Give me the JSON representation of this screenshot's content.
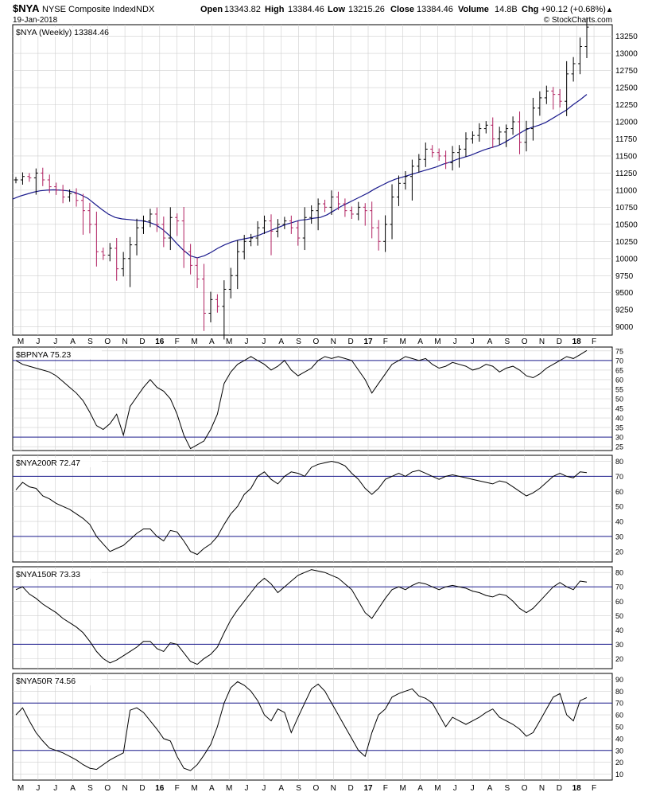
{
  "header": {
    "symbol": "$NYA",
    "name": "NYSE Composite Index",
    "exchange": "INDX",
    "date": "19-Jan-2018",
    "open_label": "Open",
    "open": "13343.82",
    "high_label": "High",
    "high": "13384.46",
    "low_label": "Low",
    "low": "13215.26",
    "close_label": "Close",
    "close": "13384.46",
    "volume_label": "Volume",
    "volume": "14.8B",
    "chg_label": "Chg",
    "chg": "+90.12 (+0.68%)",
    "brand": "© StockCharts.com"
  },
  "colors": {
    "price_up": "#000000",
    "price_down": "#b02060",
    "ma": "#1a1a8c",
    "grid": "#cfcfcf",
    "ref_line": "#1a1a8c"
  },
  "x_axis": {
    "labels": [
      "M",
      "J",
      "J",
      "A",
      "S",
      "O",
      "N",
      "D",
      "16",
      "F",
      "M",
      "A",
      "M",
      "J",
      "J",
      "A",
      "S",
      "O",
      "N",
      "D",
      "17",
      "F",
      "M",
      "A",
      "M",
      "J",
      "J",
      "A",
      "S",
      "O",
      "N",
      "D",
      "18",
      "F"
    ],
    "bold": [
      "16",
      "17",
      "18"
    ]
  },
  "chart_data": [
    {
      "type": "ohlc",
      "title": "$NYA (Weekly) 13384.46",
      "y_ticks": [
        9000,
        9250,
        9500,
        9750,
        10000,
        10250,
        10500,
        10750,
        11000,
        11250,
        11500,
        11750,
        12000,
        12250,
        12500,
        12750,
        13000,
        13250
      ],
      "ylim": [
        8880,
        13420
      ],
      "ma_series": {
        "name": "",
        "values": [
          10870,
          10910,
          10940,
          10970,
          10990,
          11000,
          11005,
          11000,
          10990,
          10970,
          10930,
          10880,
          10800,
          10720,
          10650,
          10600,
          10580,
          10570,
          10560,
          10550,
          10530,
          10490,
          10420,
          10330,
          10220,
          10120,
          10040,
          10010,
          10040,
          10090,
          10150,
          10200,
          10240,
          10270,
          10290,
          10310,
          10340,
          10380,
          10420,
          10460,
          10500,
          10530,
          10560,
          10570,
          10590,
          10600,
          10640,
          10700,
          10760,
          10810,
          10860,
          10910,
          10960,
          11020,
          11070,
          11120,
          11160,
          11190,
          11220,
          11250,
          11280,
          11310,
          11340,
          11380,
          11410,
          11450,
          11480,
          11510,
          11550,
          11590,
          11620,
          11650,
          11700,
          11760,
          11820,
          11880,
          11920,
          11950,
          11990,
          12050,
          12110,
          12170,
          12250,
          12320,
          12400
        ]
      },
      "closes": [
        11150,
        11200,
        11180,
        11250,
        11150,
        11050,
        11000,
        10900,
        10950,
        10850,
        10700,
        10500,
        10100,
        10050,
        10150,
        9850,
        10000,
        10200,
        10450,
        10550,
        10650,
        10500,
        10300,
        10600,
        10550,
        10100,
        9900,
        9700,
        9200,
        9400,
        9300,
        9550,
        9750,
        10100,
        10250,
        10300,
        10450,
        10550,
        10400,
        10500,
        10550,
        10450,
        10300,
        10600,
        10700,
        10800,
        10750,
        10900,
        10800,
        10700,
        10650,
        10750,
        10700,
        10450,
        10250,
        10500,
        10900,
        11100,
        11200,
        11350,
        11450,
        11600,
        11550,
        11500,
        11400,
        11550,
        11600,
        11750,
        11800,
        11900,
        11950,
        11750,
        11850,
        11900,
        12000,
        11700,
        11900,
        12200,
        12350,
        12450,
        12400,
        12300,
        12700,
        12850,
        13100,
        13384
      ]
    },
    {
      "type": "line",
      "title": "$BPNYA 75.23",
      "y_ticks": [
        25,
        30,
        35,
        40,
        45,
        50,
        55,
        60,
        65,
        70,
        75
      ],
      "ylim": [
        23,
        77
      ],
      "ref_lines": [
        70,
        30
      ],
      "values": [
        70,
        68,
        67,
        66,
        65,
        64,
        62,
        59,
        56,
        53,
        49,
        43,
        36,
        34,
        37,
        42,
        31,
        46,
        51,
        56,
        60,
        56,
        54,
        50,
        42,
        31,
        24,
        26,
        28,
        34,
        42,
        58,
        64,
        68,
        70,
        72,
        70,
        68,
        65,
        67,
        70,
        65,
        62,
        64,
        66,
        70,
        72,
        71,
        72,
        71,
        70,
        65,
        60,
        53,
        58,
        63,
        68,
        70,
        72,
        71,
        70,
        71,
        68,
        66,
        67,
        69,
        68,
        67,
        65,
        66,
        68,
        67,
        64,
        66,
        67,
        65,
        62,
        61,
        63,
        66,
        68,
        70,
        72,
        71,
        73,
        75.23
      ]
    },
    {
      "type": "line",
      "title": "$NYA200R 72.47",
      "y_ticks": [
        20,
        30,
        40,
        50,
        60,
        70,
        80
      ],
      "ylim": [
        13,
        84
      ],
      "ref_lines": [
        70,
        30
      ],
      "values": [
        61,
        66,
        63,
        62,
        57,
        55,
        52,
        50,
        48,
        45,
        42,
        38,
        30,
        25,
        20,
        22,
        24,
        28,
        32,
        35,
        35,
        30,
        27,
        34,
        33,
        27,
        20,
        18,
        22,
        25,
        30,
        38,
        45,
        50,
        58,
        62,
        70,
        73,
        68,
        65,
        70,
        73,
        72,
        70,
        76,
        78,
        79,
        80,
        79,
        77,
        72,
        68,
        62,
        58,
        62,
        68,
        70,
        72,
        70,
        73,
        74,
        72,
        70,
        68,
        70,
        71,
        70,
        69,
        68,
        67,
        66,
        65,
        67,
        66,
        63,
        60,
        57,
        59,
        62,
        66,
        70,
        72,
        70,
        69,
        73,
        72.47
      ]
    },
    {
      "type": "line",
      "title": "$NYA150R 73.33",
      "y_ticks": [
        20,
        30,
        40,
        50,
        60,
        70,
        80
      ],
      "ylim": [
        13,
        84
      ],
      "ref_lines": [
        70,
        30
      ],
      "values": [
        68,
        70,
        65,
        62,
        58,
        55,
        52,
        48,
        45,
        42,
        38,
        32,
        25,
        20,
        17,
        19,
        22,
        25,
        28,
        32,
        32,
        27,
        25,
        31,
        30,
        24,
        18,
        16,
        20,
        23,
        28,
        38,
        47,
        54,
        60,
        66,
        72,
        76,
        72,
        66,
        70,
        74,
        78,
        80,
        82,
        81,
        80,
        78,
        76,
        72,
        68,
        60,
        52,
        48,
        55,
        62,
        68,
        70,
        68,
        71,
        73,
        72,
        70,
        68,
        70,
        71,
        70,
        69,
        67,
        66,
        64,
        63,
        65,
        64,
        60,
        55,
        52,
        55,
        60,
        65,
        70,
        73,
        70,
        68,
        74,
        73.33
      ]
    },
    {
      "type": "line",
      "title": "$NYA50R 74.56",
      "y_ticks": [
        10,
        20,
        30,
        40,
        50,
        60,
        70,
        80,
        90
      ],
      "ylim": [
        5,
        95
      ],
      "ref_lines": [
        70,
        30
      ],
      "values": [
        60,
        66,
        55,
        45,
        38,
        32,
        30,
        28,
        25,
        22,
        18,
        15,
        14,
        18,
        22,
        25,
        28,
        64,
        66,
        62,
        55,
        48,
        40,
        38,
        25,
        15,
        13,
        18,
        26,
        35,
        50,
        70,
        83,
        88,
        85,
        80,
        72,
        60,
        55,
        65,
        62,
        45,
        58,
        70,
        82,
        86,
        80,
        70,
        60,
        50,
        40,
        30,
        25,
        45,
        60,
        65,
        75,
        78,
        80,
        82,
        76,
        74,
        70,
        60,
        50,
        58,
        55,
        52,
        55,
        58,
        62,
        65,
        58,
        55,
        52,
        48,
        42,
        45,
        55,
        65,
        75,
        78,
        60,
        55,
        72,
        74.56
      ]
    }
  ]
}
